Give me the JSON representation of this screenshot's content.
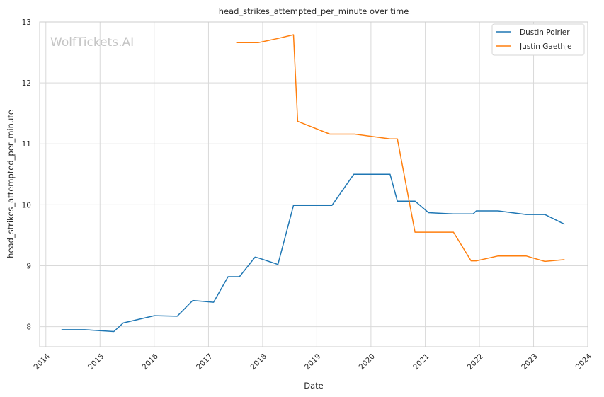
{
  "chart_data": {
    "type": "line",
    "title": "head_strikes_attempted_per_minute over time",
    "xlabel": "Date",
    "ylabel": "head_strikes_attempted_per_minute",
    "watermark": "WolfTickets.AI",
    "xlim": [
      "2013-11-20",
      "2024-01-01"
    ],
    "ylim": [
      7.67,
      13.0
    ],
    "x_ticks": [
      "2014",
      "2015",
      "2016",
      "2017",
      "2018",
      "2019",
      "2020",
      "2021",
      "2022",
      "2023",
      "2024"
    ],
    "y_ticks": [
      8,
      9,
      10,
      11,
      12,
      13
    ],
    "grid": true,
    "legend_position": "top-right",
    "series": [
      {
        "name": "Dustin Poirier",
        "color": "#1f77b4",
        "points": [
          [
            "2014-04-16",
            7.95
          ],
          [
            "2014-09-20",
            7.95
          ],
          [
            "2015-04-04",
            7.92
          ],
          [
            "2015-06-06",
            8.06
          ],
          [
            "2016-01-02",
            8.18
          ],
          [
            "2016-06-04",
            8.17
          ],
          [
            "2016-09-17",
            8.43
          ],
          [
            "2017-02-04",
            8.4
          ],
          [
            "2017-05-13",
            8.82
          ],
          [
            "2017-07-29",
            8.82
          ],
          [
            "2017-11-11",
            9.14
          ],
          [
            "2017-12-01",
            9.13
          ],
          [
            "2018-04-14",
            9.02
          ],
          [
            "2018-07-28",
            9.99
          ],
          [
            "2019-04-13",
            9.99
          ],
          [
            "2019-09-07",
            10.5
          ],
          [
            "2020-05-09",
            10.5
          ],
          [
            "2020-06-27",
            10.06
          ],
          [
            "2020-10-24",
            10.06
          ],
          [
            "2021-01-23",
            9.87
          ],
          [
            "2021-07-10",
            9.85
          ],
          [
            "2021-11-20",
            9.85
          ],
          [
            "2021-12-11",
            9.9
          ],
          [
            "2022-05-07",
            9.9
          ],
          [
            "2022-11-12",
            9.84
          ],
          [
            "2023-03-18",
            9.84
          ],
          [
            "2023-07-29",
            9.68
          ]
        ]
      },
      {
        "name": "Justin Gaethje",
        "color": "#ff7f0e",
        "points": [
          [
            "2017-07-07",
            12.66
          ],
          [
            "2017-12-02",
            12.66
          ],
          [
            "2018-04-14",
            12.73
          ],
          [
            "2018-07-28",
            12.79
          ],
          [
            "2018-08-25",
            11.37
          ],
          [
            "2019-03-30",
            11.16
          ],
          [
            "2019-09-14",
            11.16
          ],
          [
            "2020-05-09",
            11.08
          ],
          [
            "2020-06-27",
            11.08
          ],
          [
            "2020-10-24",
            9.55
          ],
          [
            "2021-07-10",
            9.55
          ],
          [
            "2021-11-06",
            9.08
          ],
          [
            "2021-12-11",
            9.08
          ],
          [
            "2022-05-07",
            9.16
          ],
          [
            "2022-11-12",
            9.16
          ],
          [
            "2023-03-18",
            9.07
          ],
          [
            "2023-07-29",
            9.1
          ]
        ]
      }
    ]
  }
}
